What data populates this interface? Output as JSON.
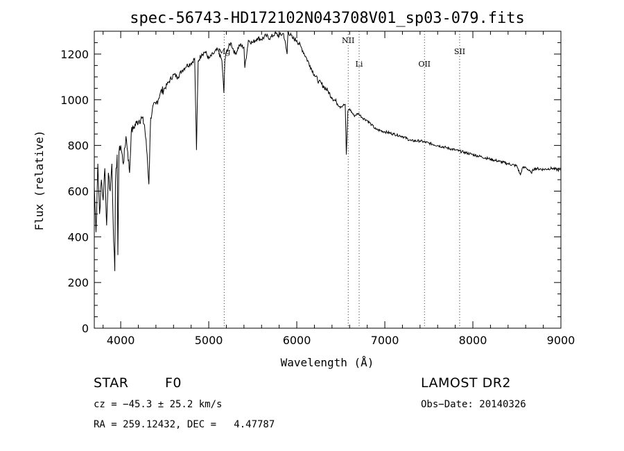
{
  "chart_data": {
    "type": "line",
    "title": "spec-56743-HD172102N043708V01_sp03-079.fits",
    "xlabel": "Wavelength (Å)",
    "ylabel": "Flux (relative)",
    "xlim": [
      3700,
      9000
    ],
    "ylim": [
      0,
      1300
    ],
    "x_ticks": [
      "4000",
      "5000",
      "6000",
      "7000",
      "8000",
      "9000"
    ],
    "y_ticks": [
      "0",
      "200",
      "400",
      "600",
      "800",
      "1000",
      "1200"
    ],
    "grid": false,
    "series": [
      {
        "x": [
          3700,
          3720,
          3740,
          3760,
          3780,
          3800,
          3820,
          3840,
          3860,
          3880,
          3900,
          3920,
          3933,
          3940,
          3960,
          3968,
          3980,
          4000,
          4030,
          4060,
          4080,
          4101,
          4120,
          4150,
          4180,
          4210,
          4240,
          4270,
          4300,
          4320,
          4340,
          4360,
          4400,
          4450,
          4500,
          4550,
          4600,
          4650,
          4700,
          4750,
          4800,
          4840,
          4861,
          4880,
          4920,
          4960,
          5000,
          5050,
          5100,
          5150,
          5172,
          5183,
          5200,
          5250,
          5300,
          5350,
          5400,
          5410,
          5450,
          5500,
          5550,
          5600,
          5650,
          5700,
          5750,
          5800,
          5850,
          5890,
          5900,
          5950,
          6000,
          6050,
          6100,
          6150,
          6200,
          6250,
          6300,
          6350,
          6400,
          6450,
          6500,
          6550,
          6563,
          6580,
          6600,
          6650,
          6700,
          6750,
          6800,
          6850,
          6900,
          7000,
          7100,
          7200,
          7300,
          7400,
          7500,
          7600,
          7700,
          7800,
          7900,
          8000,
          8100,
          8200,
          8300,
          8400,
          8500,
          8540,
          8560,
          8600,
          8662,
          8700,
          8800,
          8900,
          9000
        ],
        "y": [
          620,
          420,
          720,
          500,
          650,
          560,
          700,
          450,
          680,
          600,
          720,
          380,
          250,
          640,
          760,
          320,
          770,
          800,
          720,
          840,
          770,
          680,
          860,
          880,
          900,
          910,
          920,
          890,
          760,
          630,
          920,
          960,
          980,
          1030,
          1050,
          1080,
          1110,
          1100,
          1130,
          1150,
          1160,
          1180,
          780,
          1170,
          1200,
          1210,
          1180,
          1200,
          1220,
          1170,
          1030,
          1170,
          1210,
          1250,
          1200,
          1240,
          1230,
          1140,
          1260,
          1250,
          1270,
          1265,
          1280,
          1270,
          1290,
          1280,
          1290,
          1200,
          1300,
          1270,
          1260,
          1230,
          1190,
          1150,
          1110,
          1080,
          1060,
          1040,
          1010,
          990,
          970,
          980,
          760,
          950,
          960,
          930,
          940,
          920,
          910,
          890,
          870,
          860,
          850,
          840,
          820,
          820,
          810,
          800,
          790,
          780,
          770,
          760,
          750,
          740,
          730,
          720,
          710,
          670,
          700,
          705,
          680,
          700,
          695,
          700,
          690
        ]
      }
    ],
    "lines": [
      {
        "label": "Mg",
        "x": 5175
      },
      {
        "label": "NII",
        "x": 6584
      },
      {
        "label": "Li",
        "x": 6708
      },
      {
        "label": "OII",
        "x": 7450
      },
      {
        "label": "SII",
        "x": 7850
      }
    ]
  },
  "info": {
    "object_type": "STAR",
    "spectral_class": "F0",
    "survey": "LAMOST DR2",
    "cz": "cz = −45.3 ± 25.2 km/s",
    "obs_date": "Obs−Date: 20140326",
    "coords": "RA = 259.12432, DEC =   4.47787"
  }
}
